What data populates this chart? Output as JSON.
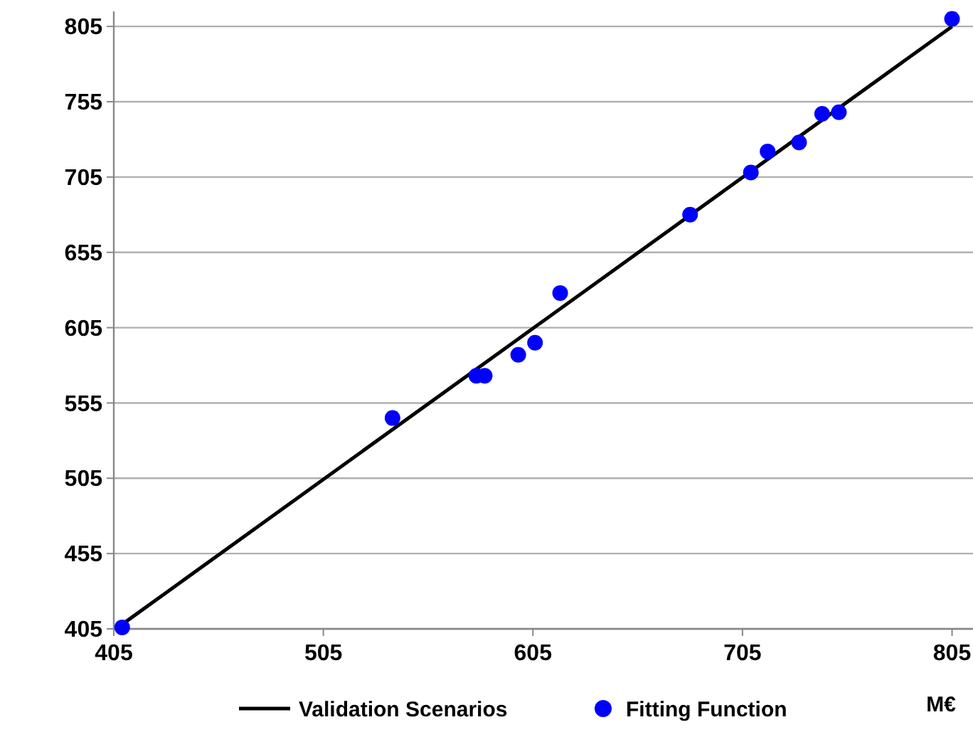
{
  "chart_data": {
    "type": "scatter",
    "xlabel": "M€",
    "xlim": [
      405,
      815
    ],
    "ylim": [
      405,
      815
    ],
    "xticks": [
      405,
      505,
      605,
      705,
      805
    ],
    "yticks": [
      405,
      455,
      505,
      555,
      605,
      655,
      705,
      755,
      805
    ],
    "grid": "y",
    "legend": "bottom",
    "series": [
      {
        "name": "Validation Scenarios",
        "type": "line",
        "color": "#000000",
        "x": [
          409,
          805
        ],
        "values": [
          408,
          805
        ]
      },
      {
        "name": "Fitting Function",
        "marker": "circle",
        "color": "#0000ff",
        "x": [
          409,
          538,
          578,
          582,
          598,
          606,
          618,
          680,
          709,
          717,
          732,
          743,
          751,
          805
        ],
        "values": [
          406,
          545,
          573,
          573,
          587,
          595,
          628,
          680,
          708,
          722,
          728,
          747,
          748,
          810
        ]
      }
    ]
  }
}
